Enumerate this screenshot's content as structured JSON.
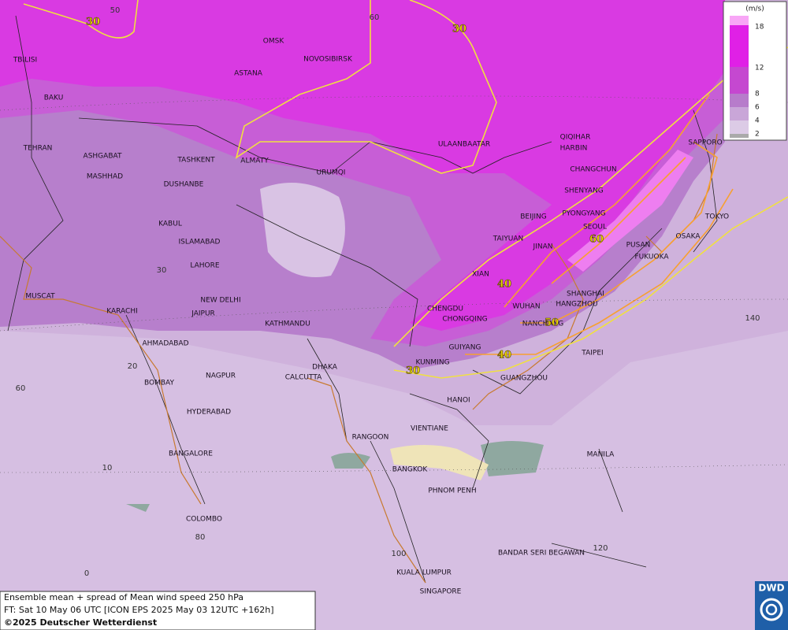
{
  "legend": {
    "unit": "(m/s)",
    "ticks": [
      18,
      12,
      8,
      6,
      4,
      2
    ]
  },
  "cities": [
    "TBILISI",
    "BAKU",
    "TEHRAN",
    "ASHGABAT",
    "MASHHAD",
    "OMSK",
    "NOVOSIBIRSK",
    "ASTANA",
    "TASHKENT",
    "ALMATY",
    "DUSHANBE",
    "URUMQI",
    "KABUL",
    "ISLAMABAD",
    "LAHORE",
    "NEW DELHI",
    "JAIPUR",
    "MUSCAT",
    "KARACHI",
    "AHMADABAD",
    "KATHMANDU",
    "DHAKA",
    "CALCUTTA",
    "NAGPUR",
    "BOMBAY",
    "HYDERABAD",
    "BANGALORE",
    "COLOMBO",
    "ULAANBAATAR",
    "QIQIHAR",
    "HARBIN",
    "CHANGCHUN",
    "SHENYANG",
    "BEIJING",
    "PYONGYANG",
    "SEOUL",
    "TAIYUAN",
    "JINAN",
    "PUSAN",
    "FUKUOKA",
    "SAPPORO",
    "TOKYO",
    "OSAKA",
    "XIAN",
    "CHENGDU",
    "CHONGQING",
    "WUHAN",
    "HANGZHOU",
    "SHANGHAI",
    "NANCHANG",
    "GUIYANG",
    "KUNMING",
    "TAIPEI",
    "GUANGZHOU",
    "HANOI",
    "VIENTIANE",
    "RANGOON",
    "BANGKOK",
    "PHNOM PENH",
    "MANILA",
    "BANDAR SERI BEGAWAN",
    "KUALA LUMPUR",
    "SINGAPORE"
  ],
  "grid_labels": [
    50,
    60,
    30,
    20,
    10,
    0,
    60,
    80,
    100,
    120,
    140
  ],
  "contour_labels": [
    30,
    30,
    60,
    40,
    50,
    30,
    40
  ],
  "footer": {
    "line1": "Ensemble mean + spread of Mean wind speed 250 hPa",
    "line2": "FT: Sat 10 May 06 UTC [ICON EPS 2025 May 03 12UTC +162h]",
    "copyright": "©2025 Deutscher Wetterdienst"
  },
  "logo": "DWD"
}
